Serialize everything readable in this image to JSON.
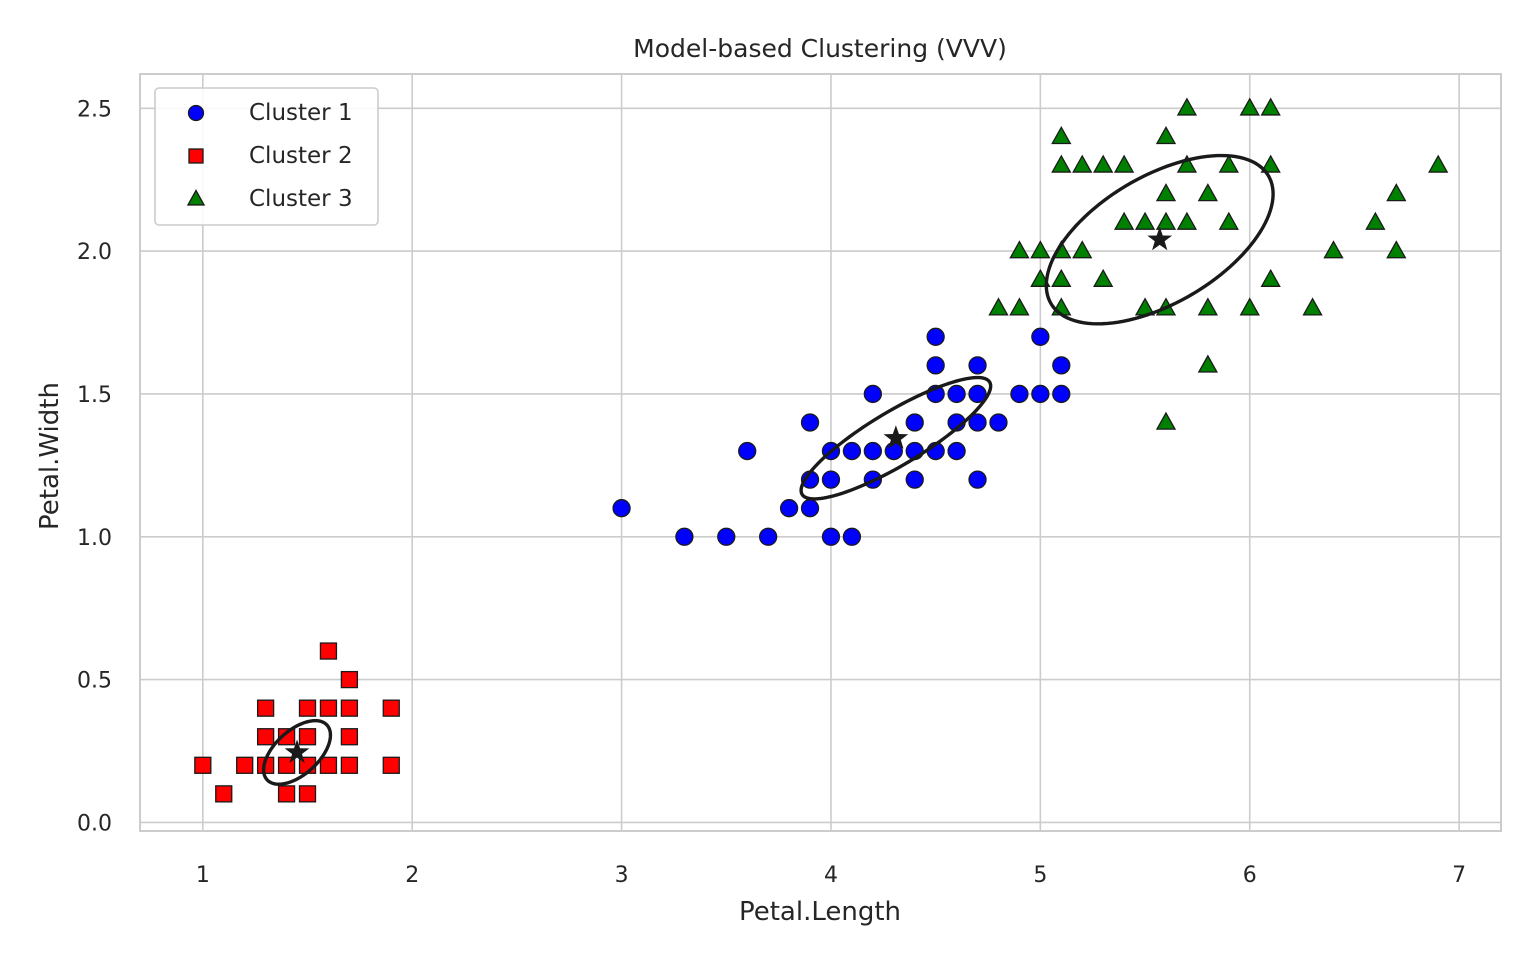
{
  "chart_data": {
    "type": "scatter",
    "title": "Model-based Clustering (VVV)",
    "xlabel": "Petal.Length",
    "ylabel": "Petal.Width",
    "xlim": [
      0.7,
      7.2
    ],
    "ylim": [
      -0.03,
      2.62
    ],
    "xticks": [
      1,
      2,
      3,
      4,
      5,
      6,
      7
    ],
    "xtick_labels": [
      "1",
      "2",
      "3",
      "4",
      "5",
      "6",
      "7"
    ],
    "yticks": [
      0.0,
      0.5,
      1.0,
      1.5,
      2.0,
      2.5
    ],
    "ytick_labels": [
      "0.0",
      "0.5",
      "1.0",
      "1.5",
      "2.0",
      "2.5"
    ],
    "grid": true,
    "legend_position": "top-left",
    "series": [
      {
        "name": "Cluster 1",
        "marker": "circle",
        "color": "#0000ff",
        "points": [
          [
            3.0,
            1.1
          ],
          [
            3.3,
            1.0
          ],
          [
            3.5,
            1.0
          ],
          [
            3.7,
            1.0
          ],
          [
            3.6,
            1.3
          ],
          [
            3.8,
            1.1
          ],
          [
            3.9,
            1.1
          ],
          [
            3.9,
            1.2
          ],
          [
            3.9,
            1.4
          ],
          [
            4.0,
            1.0
          ],
          [
            4.0,
            1.2
          ],
          [
            4.0,
            1.3
          ],
          [
            4.1,
            1.0
          ],
          [
            4.1,
            1.3
          ],
          [
            4.2,
            1.2
          ],
          [
            4.2,
            1.3
          ],
          [
            4.2,
            1.5
          ],
          [
            4.3,
            1.3
          ],
          [
            4.4,
            1.2
          ],
          [
            4.4,
            1.3
          ],
          [
            4.4,
            1.4
          ],
          [
            4.5,
            1.3
          ],
          [
            4.5,
            1.5
          ],
          [
            4.5,
            1.6
          ],
          [
            4.5,
            1.7
          ],
          [
            4.6,
            1.3
          ],
          [
            4.6,
            1.4
          ],
          [
            4.6,
            1.5
          ],
          [
            4.7,
            1.2
          ],
          [
            4.7,
            1.4
          ],
          [
            4.7,
            1.5
          ],
          [
            4.7,
            1.6
          ],
          [
            4.8,
            1.4
          ],
          [
            4.9,
            1.5
          ],
          [
            5.0,
            1.5
          ],
          [
            5.0,
            1.7
          ],
          [
            5.1,
            1.5
          ],
          [
            5.1,
            1.6
          ]
        ]
      },
      {
        "name": "Cluster 2",
        "marker": "square",
        "color": "#ff0000",
        "points": [
          [
            1.0,
            0.2
          ],
          [
            1.1,
            0.1
          ],
          [
            1.2,
            0.2
          ],
          [
            1.3,
            0.2
          ],
          [
            1.3,
            0.3
          ],
          [
            1.3,
            0.4
          ],
          [
            1.4,
            0.1
          ],
          [
            1.4,
            0.2
          ],
          [
            1.4,
            0.3
          ],
          [
            1.5,
            0.1
          ],
          [
            1.5,
            0.2
          ],
          [
            1.5,
            0.3
          ],
          [
            1.5,
            0.4
          ],
          [
            1.6,
            0.2
          ],
          [
            1.6,
            0.4
          ],
          [
            1.6,
            0.6
          ],
          [
            1.7,
            0.2
          ],
          [
            1.7,
            0.3
          ],
          [
            1.7,
            0.4
          ],
          [
            1.7,
            0.5
          ],
          [
            1.9,
            0.2
          ],
          [
            1.9,
            0.4
          ]
        ]
      },
      {
        "name": "Cluster 3",
        "marker": "triangle",
        "color": "#008000",
        "points": [
          [
            4.8,
            1.8
          ],
          [
            4.9,
            1.8
          ],
          [
            4.9,
            2.0
          ],
          [
            5.0,
            1.9
          ],
          [
            5.0,
            2.0
          ],
          [
            5.1,
            1.8
          ],
          [
            5.1,
            1.9
          ],
          [
            5.1,
            2.0
          ],
          [
            5.1,
            2.3
          ],
          [
            5.1,
            2.4
          ],
          [
            5.2,
            2.0
          ],
          [
            5.2,
            2.3
          ],
          [
            5.3,
            1.9
          ],
          [
            5.3,
            2.3
          ],
          [
            5.4,
            2.1
          ],
          [
            5.4,
            2.3
          ],
          [
            5.5,
            1.8
          ],
          [
            5.5,
            2.1
          ],
          [
            5.6,
            1.4
          ],
          [
            5.6,
            1.8
          ],
          [
            5.6,
            2.1
          ],
          [
            5.6,
            2.2
          ],
          [
            5.6,
            2.4
          ],
          [
            5.7,
            2.1
          ],
          [
            5.7,
            2.3
          ],
          [
            5.7,
            2.5
          ],
          [
            5.8,
            1.6
          ],
          [
            5.8,
            1.8
          ],
          [
            5.8,
            2.2
          ],
          [
            5.9,
            2.1
          ],
          [
            5.9,
            2.3
          ],
          [
            6.0,
            1.8
          ],
          [
            6.0,
            2.5
          ],
          [
            6.1,
            1.9
          ],
          [
            6.1,
            2.3
          ],
          [
            6.1,
            2.5
          ],
          [
            6.3,
            1.8
          ],
          [
            6.4,
            2.0
          ],
          [
            6.6,
            2.1
          ],
          [
            6.7,
            2.0
          ],
          [
            6.7,
            2.2
          ],
          [
            6.9,
            2.3
          ]
        ]
      }
    ],
    "centers": [
      {
        "cluster": "Cluster 1",
        "x": 4.31,
        "y": 1.345
      },
      {
        "cluster": "Cluster 2",
        "x": 1.45,
        "y": 0.245
      },
      {
        "cluster": "Cluster 3",
        "x": 5.57,
        "y": 2.04
      }
    ],
    "ellipses": [
      {
        "cluster": "Cluster 1",
        "cx": 4.31,
        "cy": 1.345,
        "semi_major": 0.49,
        "semi_minor": 0.1,
        "angle_deg": 23
      },
      {
        "cluster": "Cluster 2",
        "cx": 1.45,
        "cy": 0.245,
        "semi_major": 0.175,
        "semi_minor": 0.085,
        "angle_deg": 28
      },
      {
        "cluster": "Cluster 3",
        "cx": 5.57,
        "cy": 2.04,
        "semi_major": 0.57,
        "semi_minor": 0.235,
        "angle_deg": 20
      }
    ]
  }
}
